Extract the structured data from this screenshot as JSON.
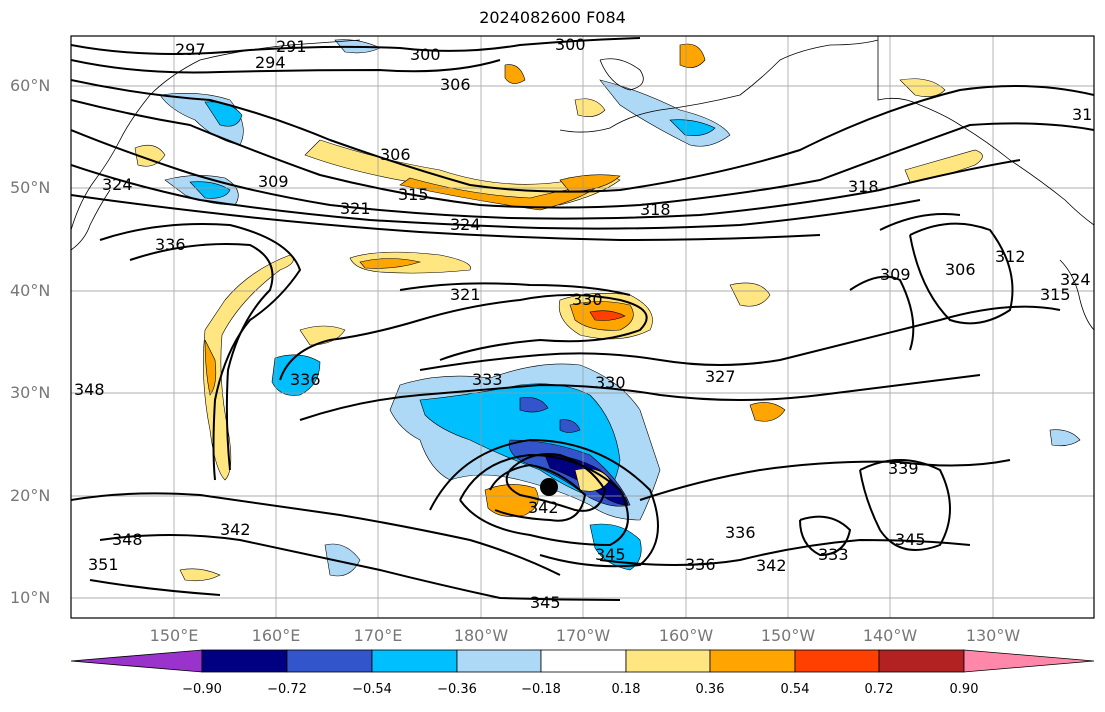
{
  "title": "2024082600 F084",
  "lat_labels": [
    "60°N",
    "50°N",
    "40°N",
    "30°N",
    "20°N",
    "10°N"
  ],
  "lon_labels": [
    "150°E",
    "160°E",
    "170°E",
    "180°W",
    "170°W",
    "160°W",
    "150°W",
    "140°W",
    "130°W"
  ],
  "colorbar": {
    "ticks": [
      "−0.90",
      "−0.72",
      "−0.54",
      "−0.36",
      "−0.18",
      "0.18",
      "0.36",
      "0.54",
      "0.72",
      "0.90"
    ],
    "colors": [
      "#9933cc",
      "#000080",
      "#3355cc",
      "#00bfff",
      "#add8f6",
      "#ffffff",
      "#ffe680",
      "#ffa500",
      "#ff4000",
      "#b22222",
      "#ff88aa"
    ]
  },
  "contour_labels": [
    "297",
    "291",
    "294",
    "300",
    "300",
    "306",
    "306",
    "309",
    "315",
    "321",
    "324",
    "318",
    "324",
    "336",
    "321",
    "330",
    "309",
    "306",
    "312",
    "315",
    "318",
    "324",
    "327",
    "330",
    "333",
    "336",
    "348",
    "342",
    "342",
    "348",
    "351",
    "339",
    "345",
    "336",
    "333",
    "342",
    "345",
    "336",
    "345",
    "31"
  ],
  "storm_marker": "storm-center"
}
